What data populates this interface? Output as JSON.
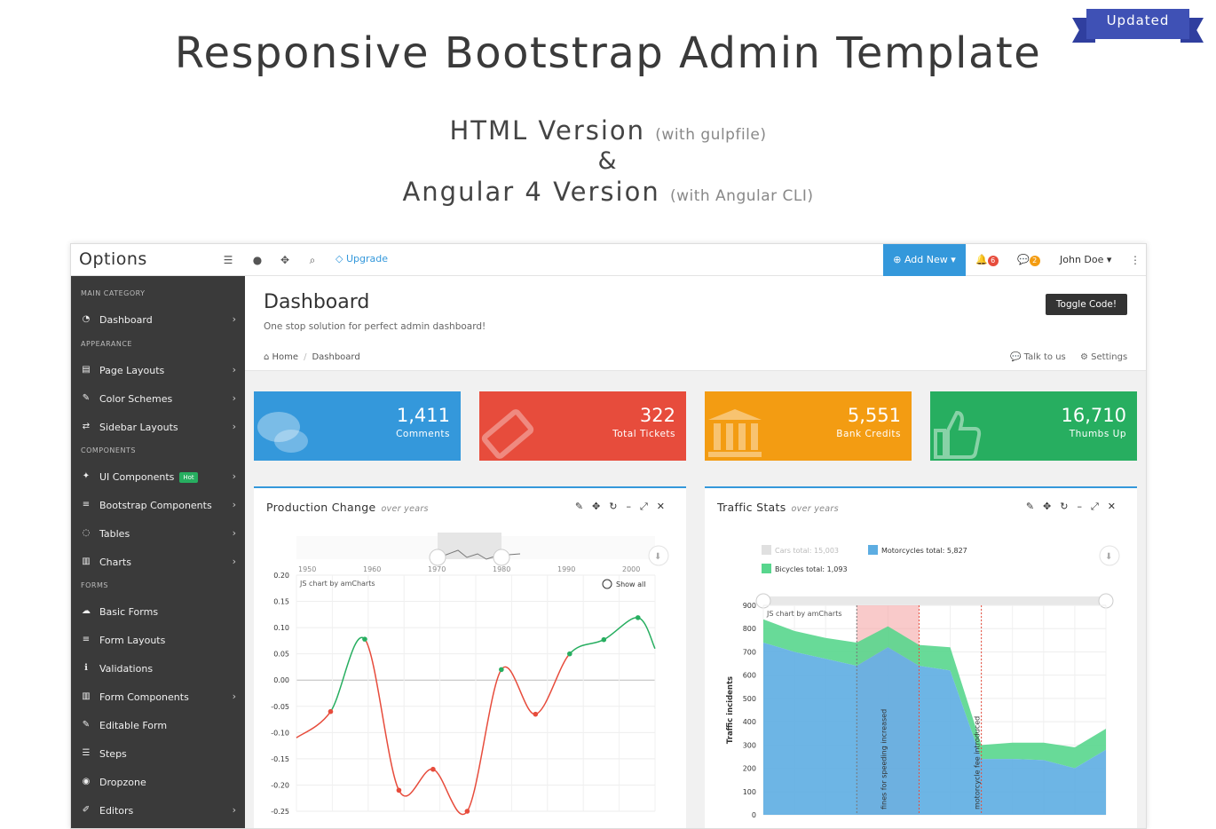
{
  "hero": {
    "title": "Responsive Bootstrap Admin Template",
    "ribbon": "Updated",
    "line1": "HTML Version",
    "line1_note": "(with gulpfile)",
    "amp": "&",
    "line2": "Angular 4 Version",
    "line2_note": "(with Angular CLI)"
  },
  "topbar": {
    "brand": "Options",
    "upgrade": "Upgrade",
    "add_new": "Add New",
    "notif_count": "6",
    "msg_count": "2",
    "user": "John Doe"
  },
  "sidebar": {
    "categories": [
      "MAIN CATEGORY",
      "APPEARANCE",
      "COMPONENTS",
      "FORMS"
    ],
    "items": [
      {
        "label": "Dashboard",
        "icon": "dashboard-icon"
      },
      {
        "label": "Page Layouts",
        "icon": "file-icon"
      },
      {
        "label": "Color Schemes",
        "icon": "brush-icon"
      },
      {
        "label": "Sidebar Layouts",
        "icon": "signpost-icon"
      },
      {
        "label": "UI Components",
        "icon": "magic-icon",
        "badge": "Hot"
      },
      {
        "label": "Bootstrap Components",
        "icon": "bars-icon"
      },
      {
        "label": "Tables",
        "icon": "comments-icon"
      },
      {
        "label": "Charts",
        "icon": "bar-chart-icon"
      },
      {
        "label": "Basic Forms",
        "icon": "cloud-icon"
      },
      {
        "label": "Form Layouts",
        "icon": "bars-icon"
      },
      {
        "label": "Validations",
        "icon": "info-icon"
      },
      {
        "label": "Form Components",
        "icon": "bar-chart-icon"
      },
      {
        "label": "Editable Form",
        "icon": "pencil-icon"
      },
      {
        "label": "Steps",
        "icon": "list-icon"
      },
      {
        "label": "Dropzone",
        "icon": "dot-circle-icon"
      },
      {
        "label": "Editors",
        "icon": "tag-icon"
      }
    ]
  },
  "page": {
    "title": "Dashboard",
    "description": "One stop solution for perfect admin dashboard!",
    "toggle": "Toggle Code!",
    "crumb_home": "Home",
    "crumb_current": "Dashboard",
    "talk": "Talk to us",
    "settings": "Settings"
  },
  "stats": [
    {
      "value": "1,411",
      "label": "Comments",
      "color": "#3498db",
      "icon": "comments-icon"
    },
    {
      "value": "322",
      "label": "Total Tickets",
      "color": "#e74c3c",
      "icon": "ticket-icon"
    },
    {
      "value": "5,551",
      "label": "Bank Credits",
      "color": "#f39c12",
      "icon": "bank-icon"
    },
    {
      "value": "16,710",
      "label": "Thumbs Up",
      "color": "#27ae60",
      "icon": "thumbs-up-icon"
    }
  ],
  "panels": {
    "production": {
      "title": "Production Change",
      "subtitle": "over years"
    },
    "traffic": {
      "title": "Traffic Stats",
      "subtitle": "over years"
    }
  },
  "chart_data": [
    {
      "type": "line",
      "credit": "JS chart by amCharts",
      "show_all": "Show all",
      "scrollbar_ticks": [
        "1950",
        "1960",
        "1970",
        "1980",
        "1990",
        "2000"
      ],
      "y_ticks": [
        "0.20",
        "0.15",
        "0.10",
        "0.05",
        "0.00",
        "-0.05",
        "-0.10",
        "-0.15",
        "-0.20",
        "-0.25"
      ],
      "ylim": [
        -0.25,
        0.2
      ],
      "points": [
        [
          0,
          -0.11
        ],
        [
          1,
          -0.06
        ],
        [
          2,
          0.078
        ],
        [
          3,
          -0.21
        ],
        [
          4,
          -0.17
        ],
        [
          5,
          -0.25
        ],
        [
          6,
          0.02
        ],
        [
          7,
          -0.065
        ],
        [
          8,
          0.05
        ],
        [
          9,
          0.077
        ],
        [
          10,
          0.119
        ],
        [
          10.5,
          0.06
        ]
      ],
      "colors": {
        "positive": "#27ae60",
        "negative": "#e74c3c"
      }
    },
    {
      "type": "area",
      "credit": "JS chart by amCharts",
      "ylabel": "Traffic incidents",
      "y_ticks": [
        "900",
        "800",
        "700",
        "600",
        "500",
        "400",
        "300",
        "200",
        "100",
        "0"
      ],
      "ylim": [
        0,
        900
      ],
      "legend": [
        {
          "label": "Cars total: 15,003",
          "color": "#cccccc",
          "disabled": true
        },
        {
          "label": "Motorcycles total: 5,827",
          "color": "#5dade2"
        },
        {
          "label": "Bicycles total: 1,093",
          "color": "#58d68d"
        }
      ],
      "series": [
        {
          "name": "Motorcycles",
          "values": [
            740,
            700,
            670,
            640,
            720,
            640,
            620,
            240,
            240,
            235,
            200,
            280
          ]
        },
        {
          "name": "Bicycles",
          "values": [
            840,
            790,
            760,
            740,
            810,
            730,
            720,
            300,
            310,
            310,
            290,
            370
          ]
        }
      ],
      "guides": [
        "fines for speeding increased",
        "motorcycle fee introduced"
      ]
    }
  ]
}
